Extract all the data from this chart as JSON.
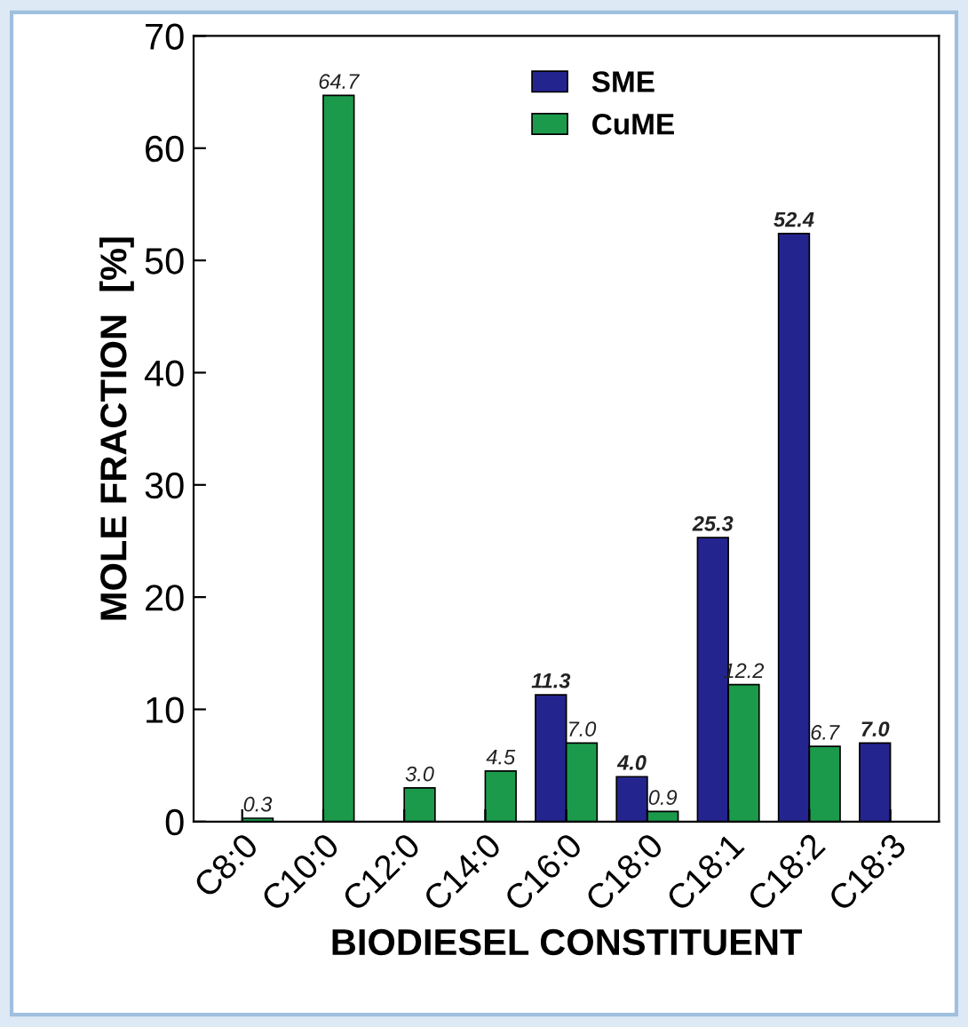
{
  "chart_data": {
    "type": "bar",
    "xlabel": "BIODIESEL CONSTITUENT",
    "ylabel": "MOLE FRACTION  [%]",
    "categories": [
      "C8:0",
      "C10:0",
      "C12:0",
      "C14:0",
      "C16:0",
      "C18:0",
      "C18:1",
      "C18:2",
      "C18:3"
    ],
    "series": [
      {
        "name": "SME",
        "color": "#24248f",
        "values": [
          null,
          null,
          null,
          null,
          11.3,
          4.0,
          25.3,
          52.4,
          7.0
        ],
        "value_labels": [
          null,
          null,
          null,
          null,
          "11.3",
          "4.0",
          "25.3",
          "52.4",
          "7.0"
        ]
      },
      {
        "name": "CuME",
        "color": "#1c9a4c",
        "values": [
          0.3,
          64.7,
          3.0,
          4.5,
          7.0,
          0.9,
          12.2,
          6.7,
          null
        ],
        "value_labels": [
          "0.3",
          "64.7",
          "3.0",
          "4.5",
          "7.0",
          "0.9",
          "12.2",
          "6.7",
          null
        ]
      }
    ],
    "ylim": [
      0,
      70
    ],
    "yticks": [
      0,
      10,
      20,
      30,
      40,
      50,
      60,
      70
    ],
    "grid": false,
    "legend": "top"
  }
}
